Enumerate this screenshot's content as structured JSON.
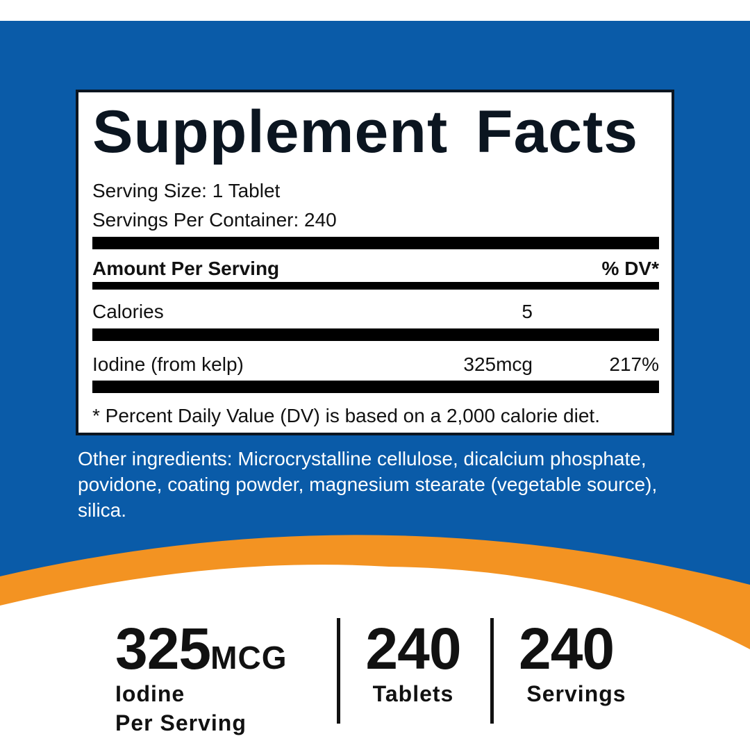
{
  "colors": {
    "brand_blue": "#0a5ba8",
    "accent_orange": "#f39322",
    "text_dark": "#0b1520"
  },
  "panel": {
    "title": "Supplement Facts",
    "serving_size": "Serving Size: 1 Tablet",
    "servings_per_container": "Servings Per Container: 240",
    "header": {
      "amount": "Amount Per Serving",
      "dv": "% DV*"
    },
    "rows": [
      {
        "name": "Calories",
        "amount": "5",
        "dv": ""
      },
      {
        "name": "Iodine (from kelp)",
        "amount": "325mcg",
        "dv": "217%"
      }
    ],
    "footnote": "* Percent Daily Value (DV) is based on a 2,000 calorie diet."
  },
  "other_ingredients": "Other ingredients: Microcrystalline cellulose, dicalcium phosphate, povidone, coating powder, magnesium stearate (vegetable source), silica.",
  "stats": [
    {
      "value": "325",
      "unit": "MCG",
      "line1": "Iodine",
      "line2": "Per Serving"
    },
    {
      "value": "240",
      "line1": "Tablets"
    },
    {
      "value": "240",
      "line1": "Servings"
    }
  ]
}
